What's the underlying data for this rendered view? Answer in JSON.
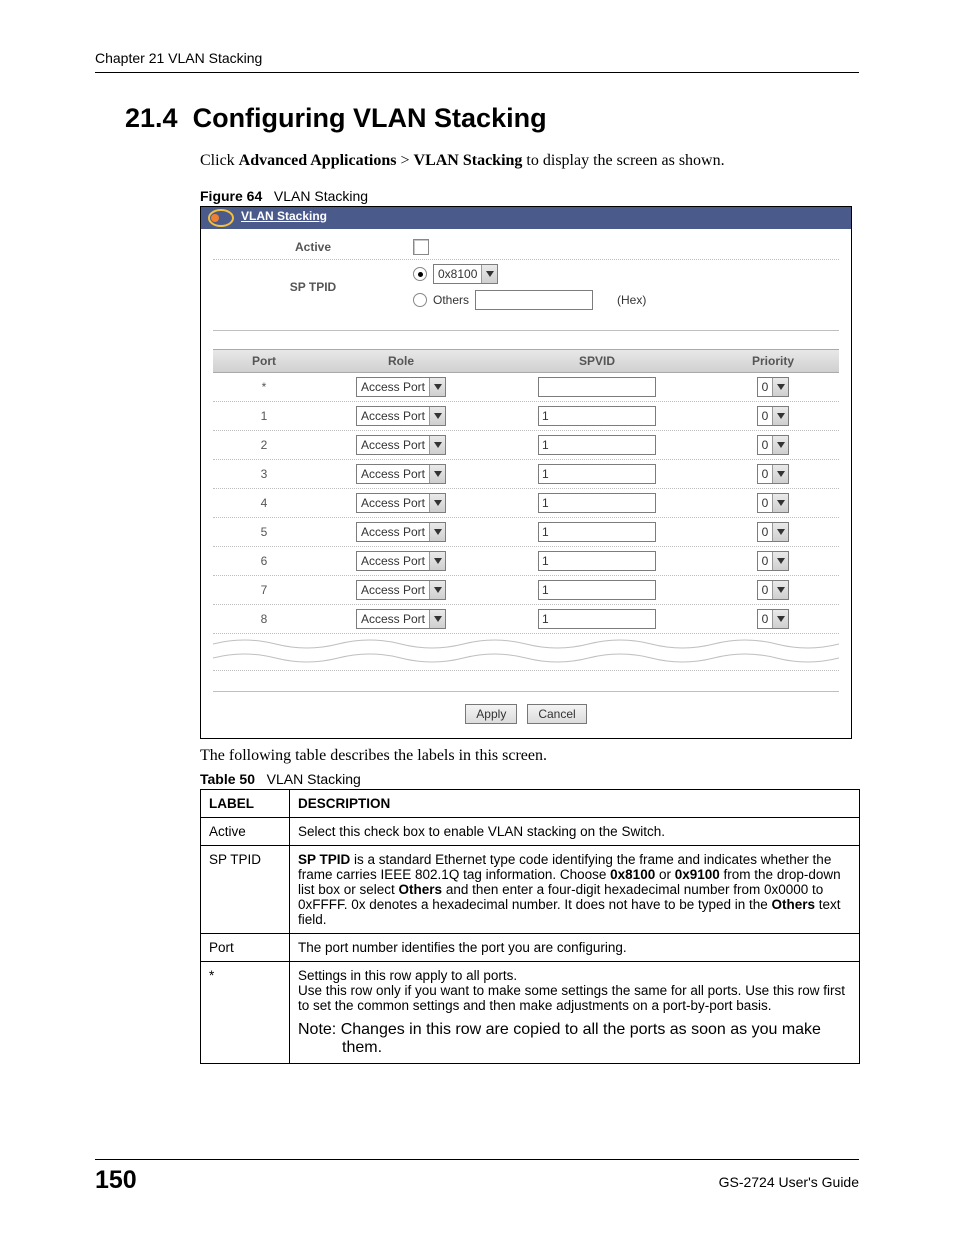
{
  "header": {
    "chapter_line": "Chapter 21 VLAN Stacking"
  },
  "section": {
    "number": "21.4",
    "title": "Configuring VLAN Stacking",
    "intro_pre": "Click ",
    "intro_b1": "Advanced Applications",
    "intro_mid": " > ",
    "intro_b2": "VLAN Stacking",
    "intro_post": " to display the screen as shown."
  },
  "figure": {
    "label": "Figure 64",
    "caption": "VLAN Stacking"
  },
  "screenshot": {
    "title_text": "VLAN Stacking",
    "active_label": "Active",
    "sp_tpid_label": "SP TPID",
    "tpid_select_value": "0x8100",
    "others_label": "Others",
    "hex_label": "(Hex)",
    "cols": {
      "port": "Port",
      "role": "Role",
      "spvid": "SPVID",
      "priority": "Priority"
    },
    "ports": [
      {
        "port": "*",
        "role": "Access Port",
        "spvid": "",
        "priority": "0"
      },
      {
        "port": "1",
        "role": "Access Port",
        "spvid": "1",
        "priority": "0"
      },
      {
        "port": "2",
        "role": "Access Port",
        "spvid": "1",
        "priority": "0"
      },
      {
        "port": "3",
        "role": "Access Port",
        "spvid": "1",
        "priority": "0"
      },
      {
        "port": "4",
        "role": "Access Port",
        "spvid": "1",
        "priority": "0"
      },
      {
        "port": "5",
        "role": "Access Port",
        "spvid": "1",
        "priority": "0"
      },
      {
        "port": "6",
        "role": "Access Port",
        "spvid": "1",
        "priority": "0"
      },
      {
        "port": "7",
        "role": "Access Port",
        "spvid": "1",
        "priority": "0"
      },
      {
        "port": "8",
        "role": "Access Port",
        "spvid": "1",
        "priority": "0"
      }
    ],
    "buttons": {
      "apply": "Apply",
      "cancel": "Cancel"
    }
  },
  "after_figure_text": "The following table describes the labels in this screen.",
  "table_caption": {
    "label": "Table 50",
    "caption": "VLAN Stacking"
  },
  "desc_table": {
    "head": {
      "label": "LABEL",
      "description": "DESCRIPTION"
    },
    "rows": {
      "r0": {
        "label": "Active",
        "desc": "Select this check box to enable VLAN stacking on the Switch."
      },
      "r1": {
        "label": "SP TPID",
        "b1": "SP TPID",
        "t1": " is a standard Ethernet type code identifying the frame and indicates whether the frame carries IEEE 802.1Q tag information. Choose ",
        "b2": "0x8100",
        "t2": " or ",
        "b3": "0x9100",
        "t3": " from the drop-down list box or select ",
        "b4": "Others",
        "t4": " and then enter a four-digit hexadecimal number from 0x0000 to 0xFFFF. 0x denotes a hexadecimal number. It does not have to be typed in the ",
        "b5": "Others",
        "t5": " text field."
      },
      "r2": {
        "label": "Port",
        "desc": "The port number identifies the port you are configuring."
      },
      "r3": {
        "label": "*",
        "line1": "Settings in this row apply to all ports.",
        "line2": "Use this row only if you want to make some settings the same for all ports. Use this row first to set the common settings and then make adjustments on a port-by-port basis.",
        "note": "Note: Changes in this row are copied to all the ports as soon as you make them."
      }
    }
  },
  "footer": {
    "page_num": "150",
    "doc_name": "GS-2724 User's Guide"
  },
  "colors": {
    "title_bar_bg": "#4a5a8a",
    "grid_header_bg_top": "#e8e8e8",
    "grid_header_bg_bot": "#d0d0d0",
    "dotted": "#bfbfbf"
  }
}
